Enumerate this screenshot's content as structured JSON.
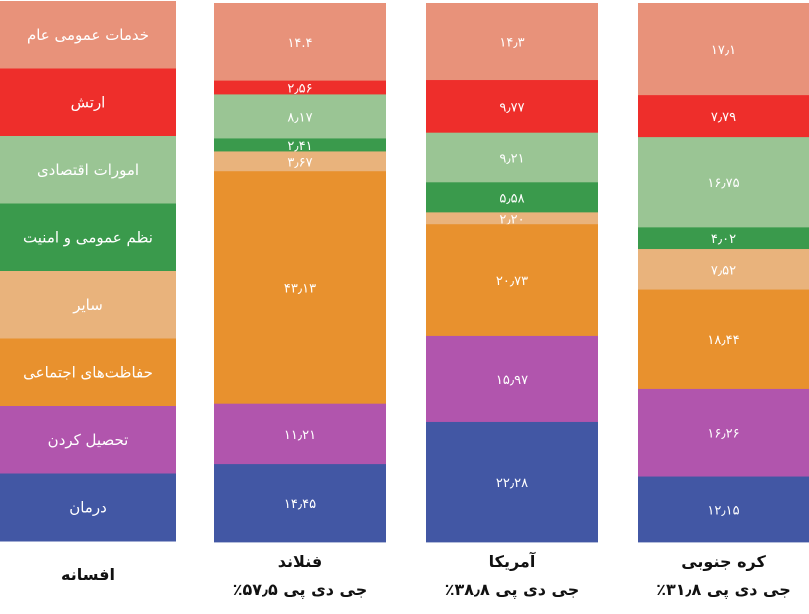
{
  "legend_title": "افسانه",
  "chart_data": {
    "type": "bar",
    "stacked": true,
    "normalized": true,
    "legend_placement": "left",
    "grid": false,
    "categories": [
      {
        "name": "خدمات عمومی عام",
        "color": "#e8927a"
      },
      {
        "name": "ارتش",
        "color": "#ee2e2b"
      },
      {
        "name": "امورات اقتصادی",
        "color": "#9ac594"
      },
      {
        "name": "نظم عمومی و امنیت",
        "color": "#3a9a4c"
      },
      {
        "name": "سایر",
        "color": "#e9b37c"
      },
      {
        "name": "حفاظت‌های اجتماعی",
        "color": "#e8912e"
      },
      {
        "name": "تحصیل کردن",
        "color": "#b155ad"
      },
      {
        "name": "درمان",
        "color": "#4257a4"
      }
    ],
    "series": [
      {
        "country": "فنلاند",
        "gdp": "٪۵۷٫۵ جی دی پی",
        "values": [
          14.4,
          2.56,
          8.17,
          2.41,
          3.67,
          43.13,
          11.21,
          14.45
        ],
        "labels": [
          "۱۴.۴",
          "۲٫۵۶",
          "۸٫۱۷",
          "۲٫۴۱",
          "۳٫۶۷",
          "۴۳٫۱۳",
          "۱۱٫۲۱",
          "۱۴٫۴۵"
        ]
      },
      {
        "country": "آمریکا",
        "gdp": "٪۳۸٫۸ جی دی پی",
        "values": [
          14.3,
          9.77,
          9.21,
          5.58,
          2.2,
          20.73,
          15.97,
          22.28
        ],
        "labels": [
          "۱۴٫۳",
          "۹٫۷۷",
          "۹٫۲۱",
          "۵٫۵۸",
          "۲٫۲۰",
          "۲۰٫۷۳",
          "۱۵٫۹۷",
          "۲۲٫۲۸"
        ]
      },
      {
        "country": "کره جنوبی",
        "gdp": "٪۳۱٫۸ جی دی پی",
        "values": [
          17.1,
          7.79,
          16.75,
          4.02,
          7.52,
          18.44,
          16.26,
          12.15
        ],
        "labels": [
          "۱۷٫۱",
          "۷٫۷۹",
          "۱۶٫۷۵",
          "۴٫۰۲",
          "۷٫۵۲",
          "۱۸٫۴۴",
          "۱۶٫۲۶",
          "۱۲٫۱۵"
        ]
      }
    ]
  }
}
